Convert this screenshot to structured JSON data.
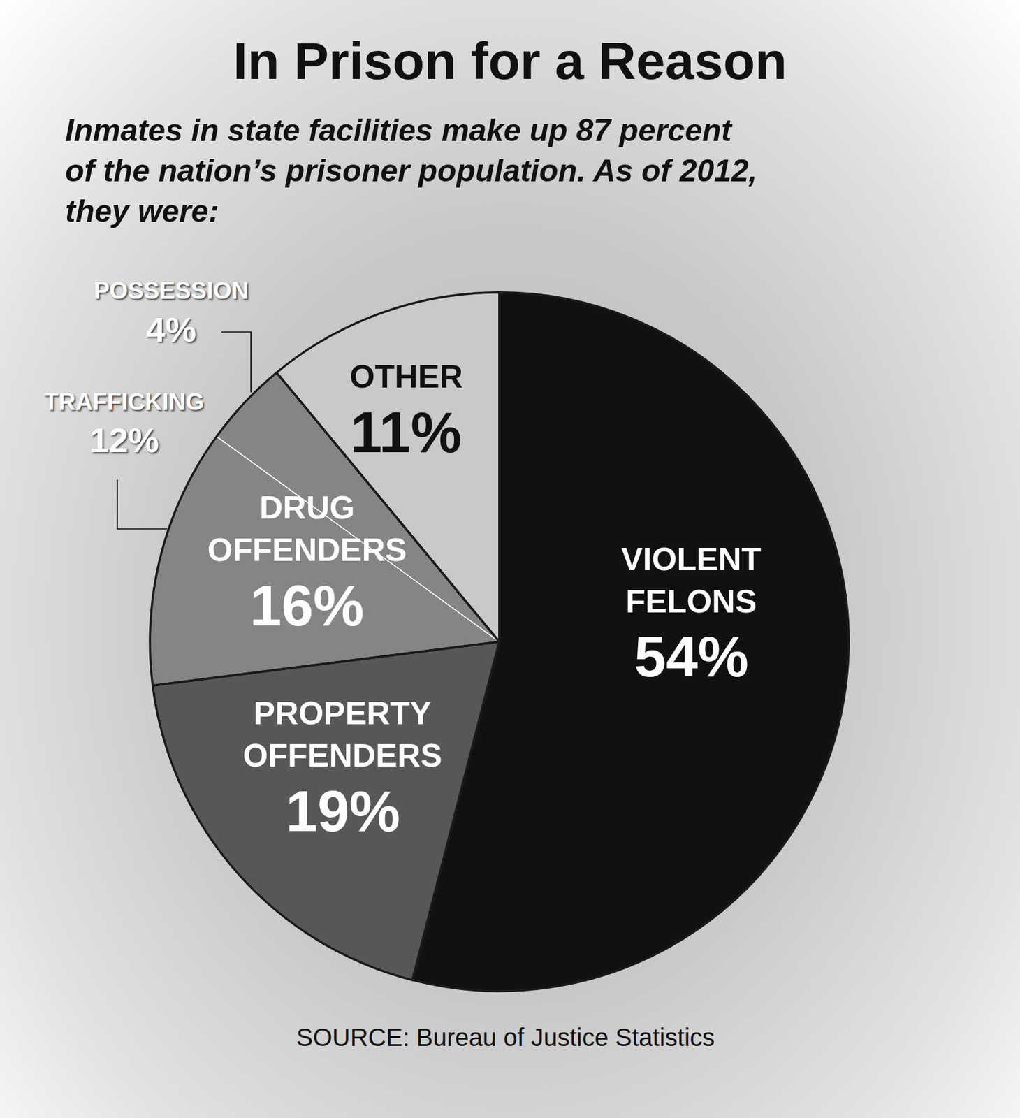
{
  "chart_data": {
    "type": "pie",
    "title": "In Prison for a Reason",
    "subtitle": [
      "Inmates in state facilities make up 87 percent",
      "of the nation’s prisoner population. As of 2012,",
      "they were:"
    ],
    "source": "SOURCE: Bureau of Justice Statistics",
    "categories": [
      "VIOLENT FELONS",
      "PROPERTY OFFENDERS",
      "DRUG OFFENDERS",
      "OTHER"
    ],
    "values": [
      54,
      19,
      16,
      11
    ],
    "value_labels": [
      "54%",
      "19%",
      "16%",
      "11%"
    ],
    "colors": [
      "#111111",
      "#575757",
      "#858585",
      "#c9c9c9"
    ],
    "data_labels": true,
    "breakdown": {
      "category": "DRUG OFFENDERS",
      "categories": [
        "TRAFFICKING",
        "POSSESSION"
      ],
      "values": [
        12,
        4
      ],
      "value_labels": [
        "12%",
        "4%"
      ]
    }
  }
}
